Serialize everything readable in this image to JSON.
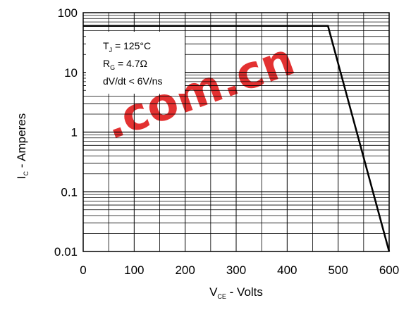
{
  "chart_data": {
    "type": "line",
    "x_scale": "linear",
    "y_scale": "log",
    "xlim": [
      0,
      600
    ],
    "ylim": [
      0.01,
      100
    ],
    "x_ticks": [
      0,
      100,
      200,
      300,
      400,
      500,
      600
    ],
    "x_tick_labels": [
      "0",
      "100",
      "200",
      "300",
      "400",
      "500",
      "600"
    ],
    "y_ticks": [
      0.01,
      0.1,
      1,
      10,
      100
    ],
    "y_tick_labels": [
      "0.01",
      "0.1",
      "1",
      "10",
      "100"
    ],
    "grid": true,
    "xlabel": {
      "main": "V",
      "sub": "CE",
      "rest": " - Volts"
    },
    "ylabel": {
      "main": "I",
      "sub": "C",
      "rest": " - Amperes"
    },
    "series": [
      {
        "x": [
          0,
          480,
          600
        ],
        "y": [
          60,
          60,
          0.01
        ]
      }
    ],
    "annotations": [
      {
        "main": "T",
        "sub": "J",
        "rest": " = 125°C"
      },
      {
        "main": "R",
        "sub": "G",
        "rest": " = 4.7Ω"
      },
      {
        "main": "dV/dt < 6V/ns",
        "sub": "",
        "rest": ""
      }
    ]
  },
  "watermark": {
    "text": ".com.cn",
    "color": "#e11b1b"
  }
}
